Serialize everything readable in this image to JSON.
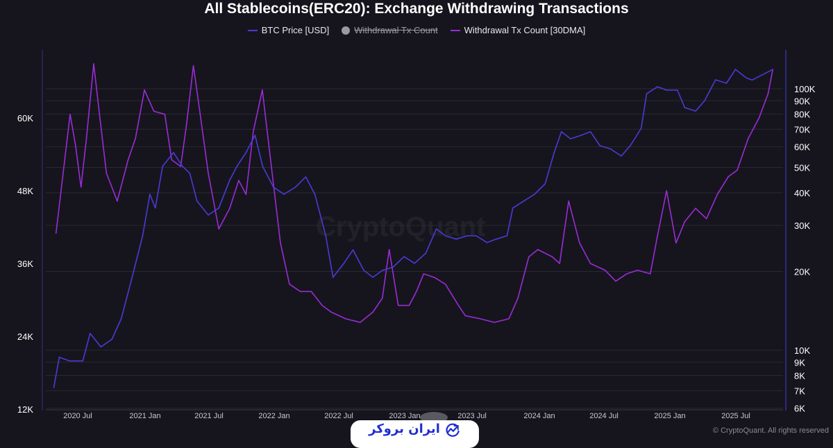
{
  "chart_data": {
    "type": "line",
    "title": "All Stablecoins(ERC20): Exchange Withdrawing Transactions",
    "legend": [
      {
        "label": "BTC Price [USD]",
        "color": "#4a3bd8",
        "visible": true
      },
      {
        "label": "Withdrawal Tx Count",
        "color": "#9a9aa2",
        "visible": false
      },
      {
        "label": "Withdrawal Tx Count [30DMA]",
        "color": "#9a2cd8",
        "visible": true
      }
    ],
    "legend_position": "top-center",
    "x_ticks": [
      "2020 Jul",
      "2021 Jan",
      "2021 Jul",
      "2022 Jan",
      "2022 Jul",
      "2023 Jan",
      "2023 Jul",
      "2024 Jan",
      "2024 Jul",
      "2025 Jan",
      "2025 Jul"
    ],
    "y_left": {
      "ticks": [
        "12K",
        "24K",
        "36K",
        "48K",
        "60K"
      ],
      "range": [
        12000,
        72000
      ],
      "scale": "linear"
    },
    "y_right": {
      "ticks": [
        "6K",
        "7K",
        "8K",
        "9K",
        "10K",
        "20K",
        "30K",
        "40K",
        "50K",
        "60K",
        "70K",
        "80K",
        "90K",
        "100K"
      ],
      "range": [
        6000,
        130000
      ],
      "scale": "log"
    },
    "grid": true,
    "series": [
      {
        "name": "Withdrawal Tx Count [30DMA]",
        "axis": "left",
        "color": "#9a2cd8",
        "points": [
          [
            "2020-05-01",
            41000
          ],
          [
            "2020-06-10",
            60600
          ],
          [
            "2020-06-25",
            55400
          ],
          [
            "2020-07-10",
            48600
          ],
          [
            "2020-07-25",
            56600
          ],
          [
            "2020-08-15",
            68900
          ],
          [
            "2020-09-01",
            60600
          ],
          [
            "2020-09-20",
            50900
          ],
          [
            "2020-10-20",
            46300
          ],
          [
            "2020-11-20",
            53100
          ],
          [
            "2020-12-10",
            56600
          ],
          [
            "2021-01-05",
            64600
          ],
          [
            "2021-02-01",
            61100
          ],
          [
            "2021-03-01",
            60600
          ],
          [
            "2021-03-20",
            53100
          ],
          [
            "2021-04-15",
            52000
          ],
          [
            "2021-05-01",
            58900
          ],
          [
            "2021-05-20",
            68600
          ],
          [
            "2021-06-10",
            60000
          ],
          [
            "2021-07-01",
            50900
          ],
          [
            "2021-07-30",
            41700
          ],
          [
            "2021-08-30",
            45100
          ],
          [
            "2021-09-25",
            49700
          ],
          [
            "2021-10-15",
            47400
          ],
          [
            "2021-11-05",
            57700
          ],
          [
            "2021-11-30",
            64600
          ],
          [
            "2021-12-25",
            52000
          ],
          [
            "2022-01-20",
            39400
          ],
          [
            "2022-02-15",
            32600
          ],
          [
            "2022-03-15",
            31400
          ],
          [
            "2022-04-15",
            31400
          ],
          [
            "2022-05-15",
            29100
          ],
          [
            "2022-06-10",
            28000
          ],
          [
            "2022-07-20",
            26900
          ],
          [
            "2022-08-30",
            26300
          ],
          [
            "2022-10-05",
            28000
          ],
          [
            "2022-11-01",
            30300
          ],
          [
            "2022-11-20",
            38300
          ],
          [
            "2022-12-15",
            29100
          ],
          [
            "2023-01-15",
            29100
          ],
          [
            "2023-02-05",
            31400
          ],
          [
            "2023-02-25",
            34300
          ],
          [
            "2023-03-25",
            33700
          ],
          [
            "2023-04-25",
            32600
          ],
          [
            "2023-06-01",
            29100
          ],
          [
            "2023-06-20",
            27400
          ],
          [
            "2023-08-01",
            26900
          ],
          [
            "2023-09-10",
            26300
          ],
          [
            "2023-10-20",
            26900
          ],
          [
            "2023-11-15",
            30300
          ],
          [
            "2023-12-15",
            37100
          ],
          [
            "2024-01-10",
            38300
          ],
          [
            "2024-02-20",
            37100
          ],
          [
            "2024-03-10",
            36000
          ],
          [
            "2024-04-05",
            46300
          ],
          [
            "2024-05-05",
            39400
          ],
          [
            "2024-06-05",
            36000
          ],
          [
            "2024-07-15",
            34900
          ],
          [
            "2024-08-15",
            33100
          ],
          [
            "2024-09-15",
            34300
          ],
          [
            "2024-10-15",
            34900
          ],
          [
            "2024-11-20",
            34300
          ],
          [
            "2024-12-10",
            40600
          ],
          [
            "2025-01-05",
            48000
          ],
          [
            "2025-02-01",
            39400
          ],
          [
            "2025-02-25",
            42900
          ],
          [
            "2025-03-25",
            45100
          ],
          [
            "2025-04-25",
            43400
          ],
          [
            "2025-05-25",
            47400
          ],
          [
            "2025-06-25",
            50300
          ],
          [
            "2025-07-20",
            51400
          ],
          [
            "2025-08-20",
            56600
          ],
          [
            "2025-09-20",
            60000
          ],
          [
            "2025-10-15",
            64000
          ],
          [
            "2025-10-28",
            68000
          ]
        ]
      },
      {
        "name": "BTC Price [USD]",
        "axis": "right",
        "color": "#4a3bd8",
        "points": [
          [
            "2020-04-25",
            7200
          ],
          [
            "2020-05-10",
            9400
          ],
          [
            "2020-06-08",
            9100
          ],
          [
            "2020-07-15",
            9100
          ],
          [
            "2020-08-05",
            11600
          ],
          [
            "2020-09-05",
            10300
          ],
          [
            "2020-10-05",
            11000
          ],
          [
            "2020-11-01",
            13200
          ],
          [
            "2020-12-01",
            19000
          ],
          [
            "2020-12-30",
            27400
          ],
          [
            "2021-01-20",
            39500
          ],
          [
            "2021-02-05",
            35000
          ],
          [
            "2021-02-25",
            50500
          ],
          [
            "2021-03-25",
            57000
          ],
          [
            "2021-04-20",
            50500
          ],
          [
            "2021-05-10",
            47500
          ],
          [
            "2021-05-30",
            37200
          ],
          [
            "2021-07-01",
            32900
          ],
          [
            "2021-07-30",
            35000
          ],
          [
            "2021-08-30",
            44700
          ],
          [
            "2021-09-20",
            50500
          ],
          [
            "2021-10-15",
            57000
          ],
          [
            "2021-11-10",
            66400
          ],
          [
            "2021-12-01",
            50500
          ],
          [
            "2022-01-01",
            42000
          ],
          [
            "2022-01-30",
            39500
          ],
          [
            "2022-03-01",
            42000
          ],
          [
            "2022-03-30",
            46000
          ],
          [
            "2022-04-25",
            39500
          ],
          [
            "2022-05-25",
            27400
          ],
          [
            "2022-06-15",
            19000
          ],
          [
            "2022-07-15",
            21500
          ],
          [
            "2022-08-10",
            24200
          ],
          [
            "2022-09-10",
            20200
          ],
          [
            "2022-10-05",
            19000
          ],
          [
            "2022-11-01",
            20200
          ],
          [
            "2022-12-01",
            20800
          ],
          [
            "2023-01-01",
            22800
          ],
          [
            "2023-01-30",
            21500
          ],
          [
            "2023-03-01",
            23500
          ],
          [
            "2023-03-30",
            29100
          ],
          [
            "2023-04-25",
            27400
          ],
          [
            "2023-05-25",
            26600
          ],
          [
            "2023-06-25",
            27400
          ],
          [
            "2023-07-20",
            27400
          ],
          [
            "2023-08-20",
            25800
          ],
          [
            "2023-09-15",
            26600
          ],
          [
            "2023-10-15",
            27400
          ],
          [
            "2023-11-01",
            35000
          ],
          [
            "2023-12-01",
            37200
          ],
          [
            "2024-01-01",
            39500
          ],
          [
            "2024-01-30",
            43300
          ],
          [
            "2024-02-25",
            57000
          ],
          [
            "2024-03-15",
            68500
          ],
          [
            "2024-04-10",
            64400
          ],
          [
            "2024-05-10",
            66400
          ],
          [
            "2024-06-05",
            68500
          ],
          [
            "2024-07-01",
            60600
          ],
          [
            "2024-08-01",
            58800
          ],
          [
            "2024-08-30",
            55300
          ],
          [
            "2024-09-25",
            60600
          ],
          [
            "2024-10-25",
            70600
          ],
          [
            "2024-11-10",
            95700
          ],
          [
            "2024-12-10",
            101800
          ],
          [
            "2025-01-05",
            98800
          ],
          [
            "2025-02-05",
            98800
          ],
          [
            "2025-02-25",
            84700
          ],
          [
            "2025-03-25",
            82200
          ],
          [
            "2025-04-20",
            90100
          ],
          [
            "2025-05-20",
            108200
          ],
          [
            "2025-06-20",
            105000
          ],
          [
            "2025-07-15",
            118600
          ],
          [
            "2025-08-15",
            110000
          ],
          [
            "2025-09-01",
            108000
          ],
          [
            "2025-10-28",
            118600
          ]
        ]
      }
    ]
  },
  "watermark": "CryptoQuant",
  "copyright": "© CryptoQuant. All rights reserved",
  "logo": {
    "text": "ایران بروکر"
  }
}
